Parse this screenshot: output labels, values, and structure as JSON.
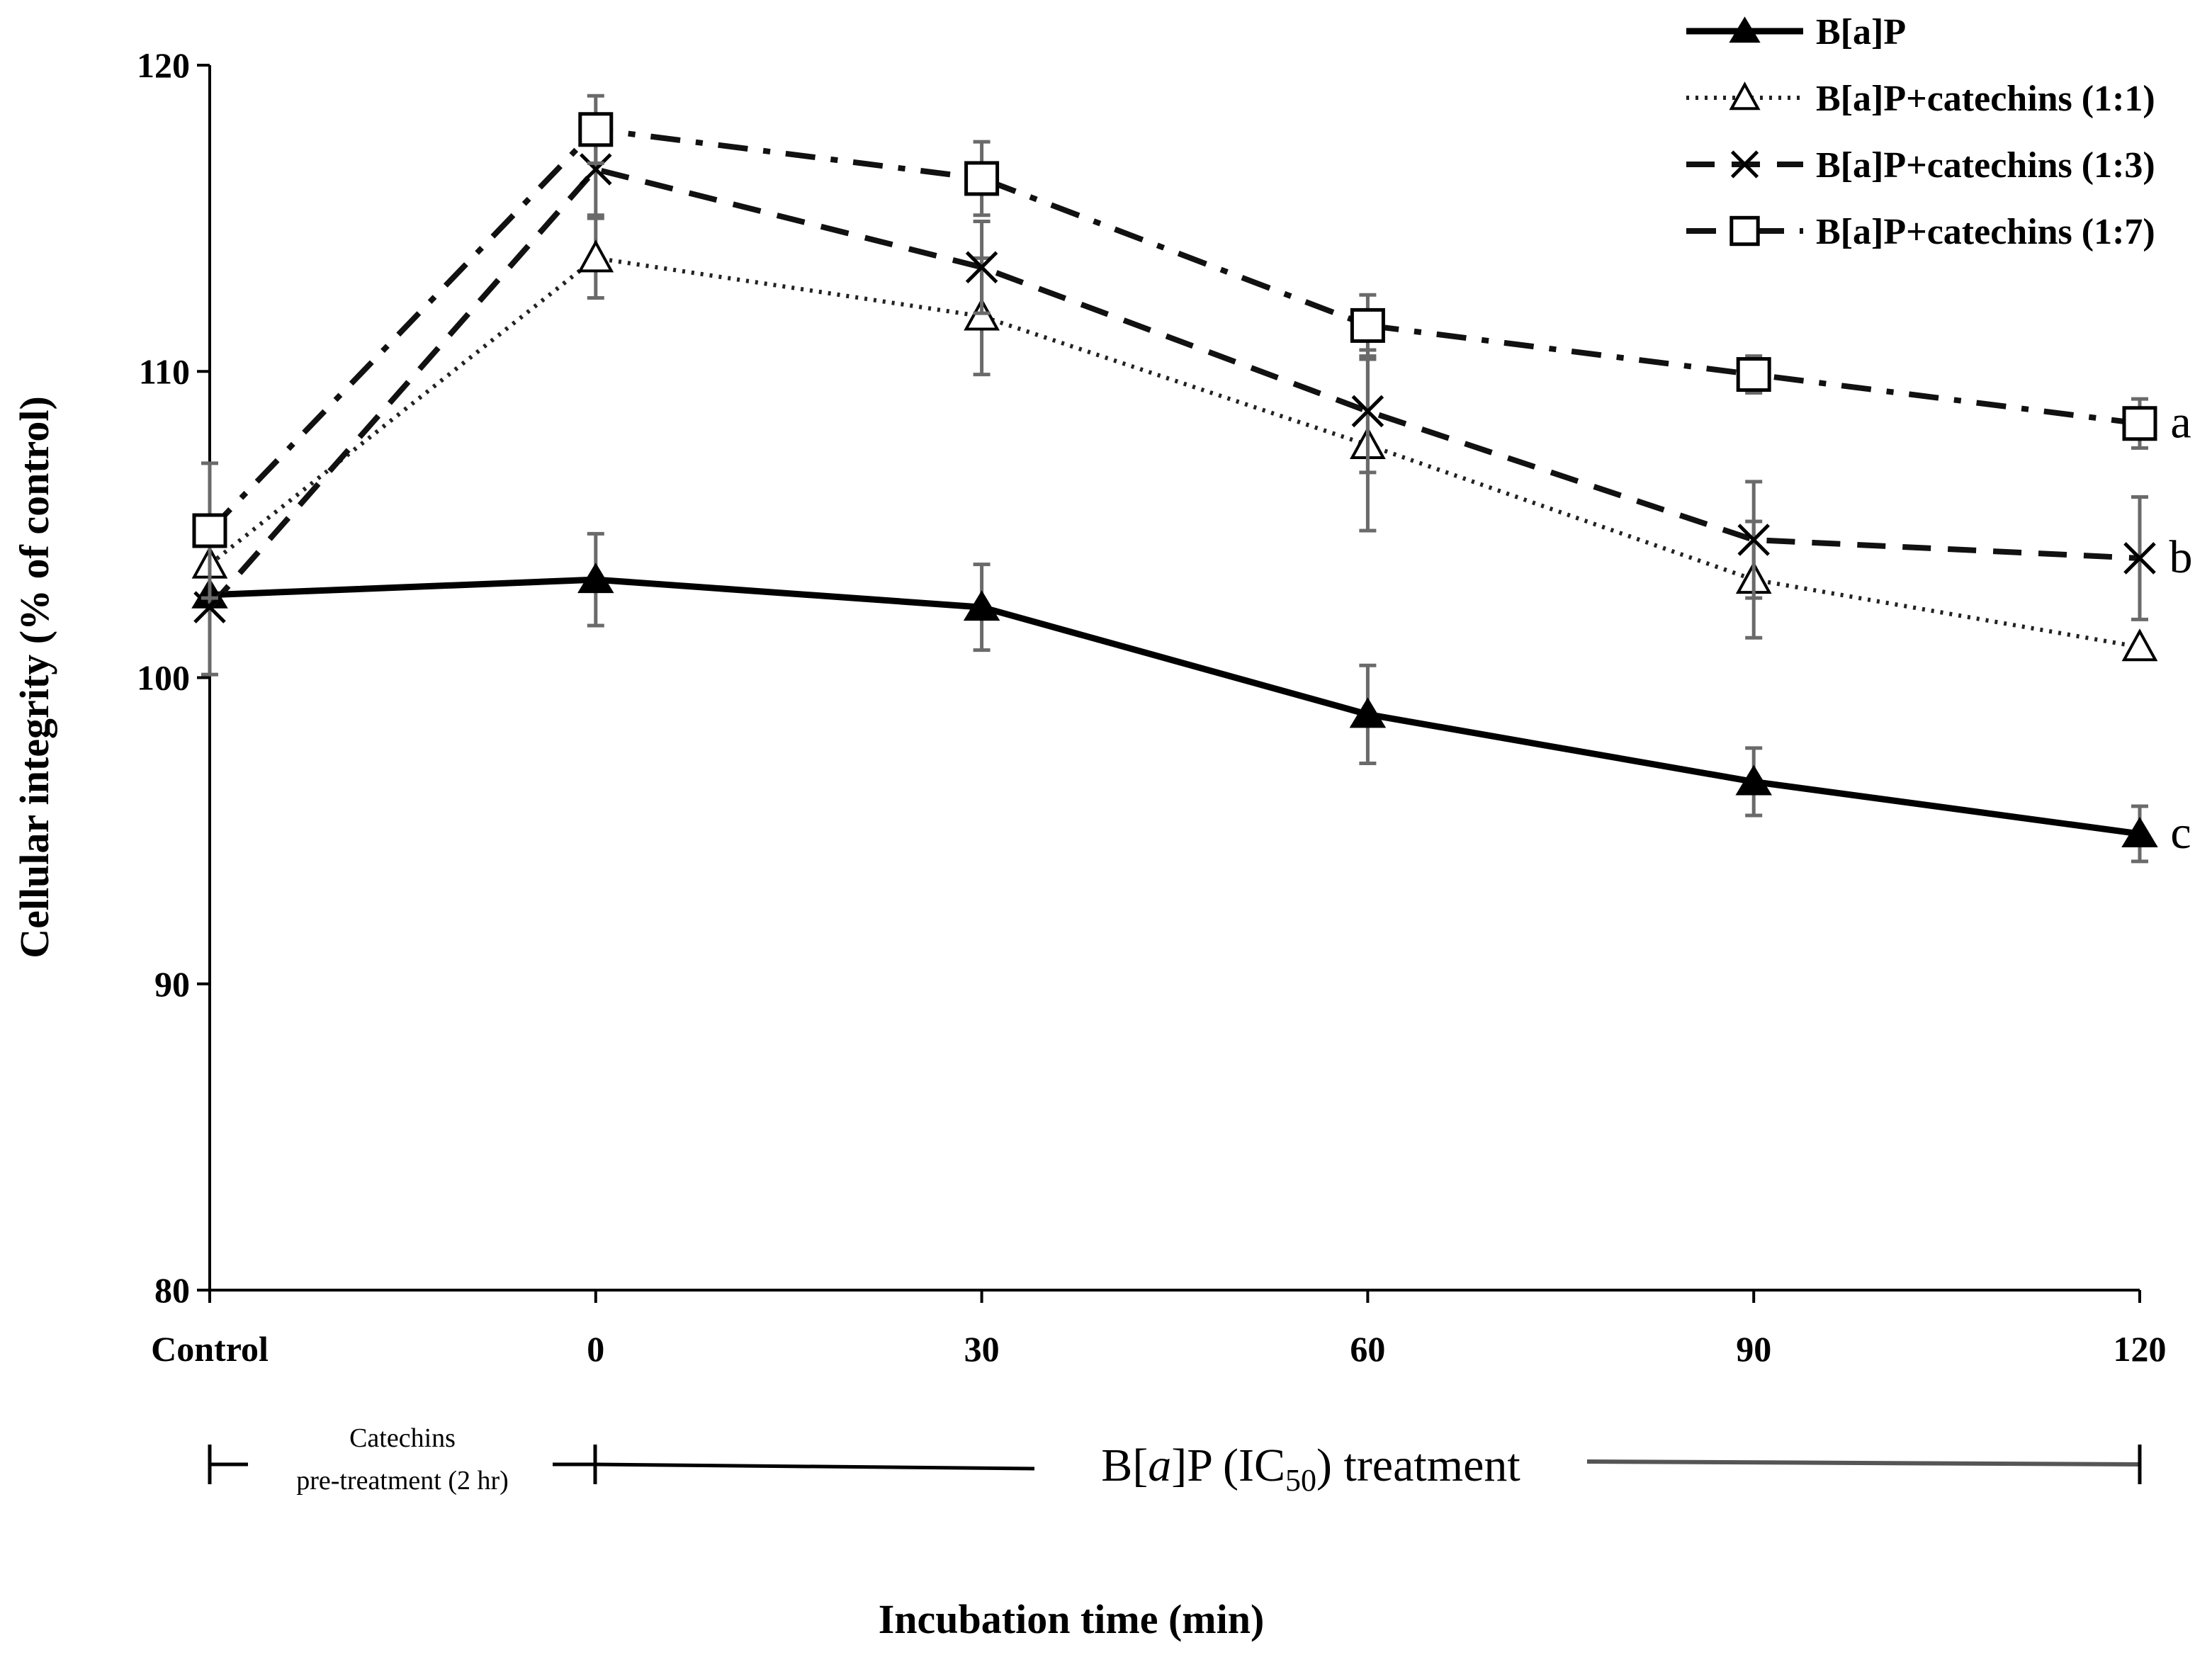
{
  "chart_data": {
    "type": "line",
    "title": "",
    "xlabel": "Incubation time (min)",
    "ylabel": "Cellular integrity (% of control)",
    "categories": [
      "Control",
      "0",
      "30",
      "60",
      "90",
      "120"
    ],
    "ylim": [
      80,
      120
    ],
    "yticks": [
      80,
      90,
      100,
      110,
      120
    ],
    "grid": false,
    "legend_position": "top-right",
    "series": [
      {
        "name": "B[a]P",
        "marker": "filled-triangle",
        "line": "solid",
        "values": [
          102.7,
          103.2,
          102.3,
          98.8,
          96.6,
          94.9
        ],
        "errors": [
          0,
          1.5,
          1.4,
          1.6,
          1.1,
          0.9
        ],
        "significance": "c"
      },
      {
        "name": "B[a]P+catechins (1:1)",
        "marker": "open-triangle",
        "line": "dotted",
        "values": [
          103.7,
          113.7,
          111.8,
          107.6,
          103.2,
          101.0
        ],
        "errors": [
          0,
          1.3,
          1.9,
          2.8,
          1.9,
          0
        ],
        "significance": ""
      },
      {
        "name": "B[a]P+catechins (1:3)",
        "marker": "x",
        "line": "dashed",
        "values": [
          102.3,
          116.6,
          113.4,
          108.7,
          104.5,
          103.9
        ],
        "errors": [
          2.2,
          1.5,
          1.5,
          2.0,
          1.9,
          2.0
        ],
        "significance": "b"
      },
      {
        "name": "B[a]P+catechins (1:7)",
        "marker": "open-square",
        "line": "dash-dot",
        "values": [
          104.8,
          117.9,
          116.3,
          111.5,
          109.9,
          108.3
        ],
        "errors": [
          2.2,
          1.1,
          1.2,
          1.0,
          0.6,
          0.8
        ],
        "significance": "a"
      }
    ],
    "phases": {
      "pretreatment": {
        "line1": "Catechins",
        "line2": "pre-treatment (2 hr)"
      },
      "treatment": {
        "prefix": "B[",
        "italic": "a",
        "mid": "]P (IC",
        "subscript": "50",
        "suffix": ") treatment"
      }
    }
  }
}
